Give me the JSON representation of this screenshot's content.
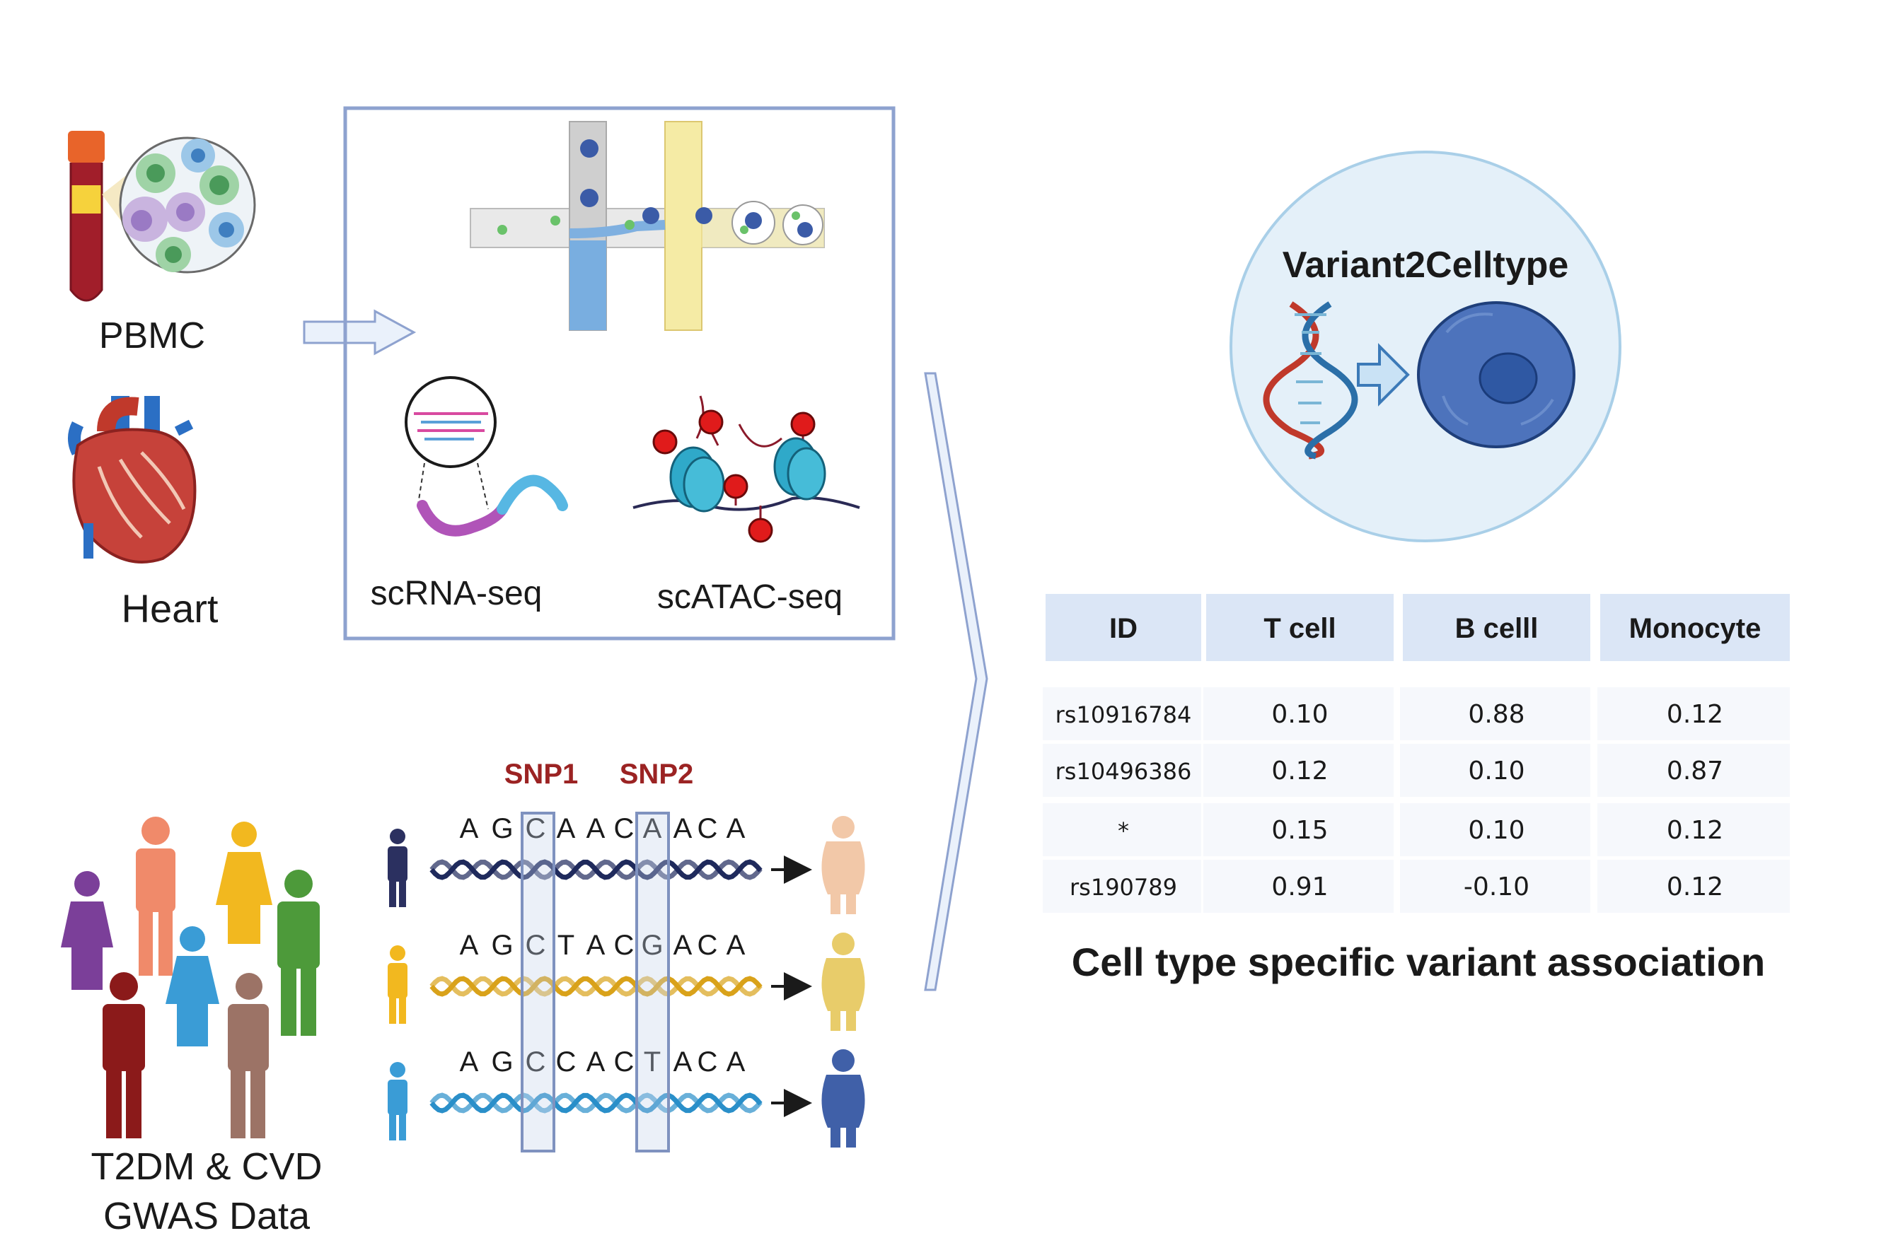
{
  "sources": {
    "pbmc_label": "PBMC",
    "heart_label": "Heart",
    "gwas_label_line1": "T2DM & CVD",
    "gwas_label_line2": "GWAS Data"
  },
  "assays": {
    "scrna_label": "scRNA-seq",
    "scatac_label": "scATAC-seq"
  },
  "genotypes": {
    "snp1_label": "SNP1",
    "snp2_label": "SNP2",
    "sequences": [
      {
        "letters": [
          "A",
          "G",
          "C",
          "A",
          "A",
          "C",
          "A",
          "A",
          "C",
          "A"
        ],
        "color": "#1f2a5c"
      },
      {
        "letters": [
          "A",
          "G",
          "C",
          "T",
          "A",
          "C",
          "G",
          "A",
          "C",
          "A"
        ],
        "color": "#d9a21a"
      },
      {
        "letters": [
          "A",
          "G",
          "C",
          "C",
          "A",
          "C",
          "T",
          "A",
          "C",
          "A"
        ],
        "color": "#2a8fc9"
      }
    ]
  },
  "model": {
    "title": "Variant2Celltype"
  },
  "table": {
    "headers": [
      "ID",
      "T cell",
      "B celll",
      "Monocyte"
    ],
    "rows": [
      [
        "rs10916784",
        "0.10",
        "0.88",
        "0.12"
      ],
      [
        "rs10496386",
        "0.12",
        "0.10",
        "0.87"
      ],
      [
        "*",
        "0.15",
        "0.10",
        "0.12"
      ],
      [
        "rs190789",
        "0.91",
        "-0.10",
        "0.12"
      ]
    ],
    "caption": "Cell type specific variant association"
  },
  "colors": {
    "frame": "#8ea2cf",
    "header_bg": "#dbe6f6",
    "cell_bg": "#f6f8fc",
    "snp_red": "#9b2323",
    "circle_fill": "#e4f0f9",
    "circle_stroke": "#a9cfe8",
    "cell_blue": "#3a5fa8"
  }
}
